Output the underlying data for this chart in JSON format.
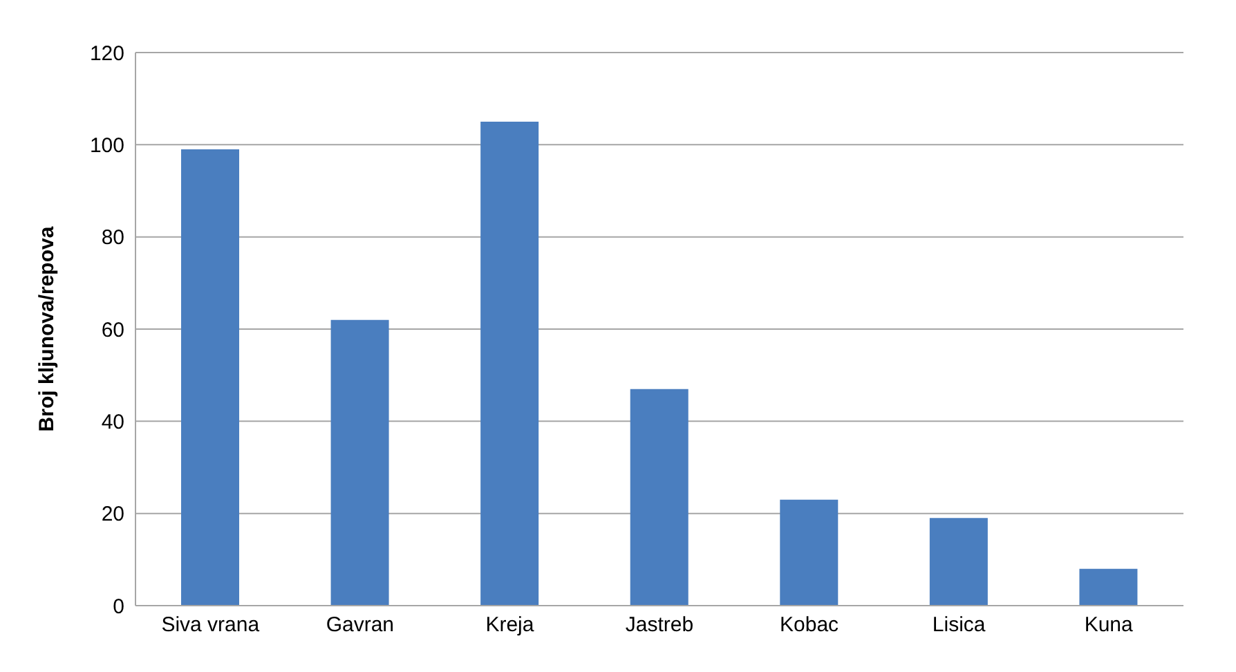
{
  "chart_data": {
    "type": "bar",
    "ylabel": "Broj kljunova/repova",
    "categories": [
      "Siva vrana",
      "Gavran",
      "Kreja",
      "Jastreb",
      "Kobac",
      "Lisica",
      "Kuna"
    ],
    "values": [
      99,
      62,
      105,
      47,
      23,
      19,
      8
    ],
    "color": "#4a7ebf",
    "ylim": [
      0,
      120
    ],
    "yticks": [
      0,
      20,
      40,
      60,
      80,
      100,
      120
    ],
    "grid": "y"
  }
}
